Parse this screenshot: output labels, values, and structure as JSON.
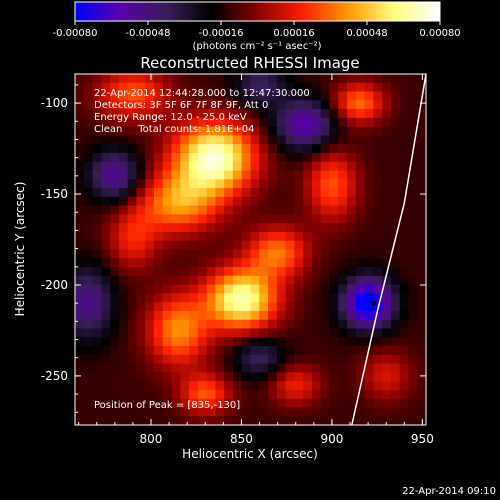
{
  "chart_data": {
    "type": "heatmap",
    "title": "Reconstructed RHESSI Image",
    "xlabel": "Heliocentric X (arcsec)",
    "ylabel": "Heliocentric Y (arcsec)",
    "xlim": [
      758,
      952
    ],
    "ylim": [
      -277,
      -84
    ],
    "x_ticks": [
      800,
      850,
      900,
      950
    ],
    "y_ticks": [
      -100,
      -150,
      -200,
      -250
    ],
    "colorbar": {
      "range": [
        -0.0008,
        0.0008
      ],
      "ticks": [
        "-0.00080",
        "-0.00048",
        "-0.00016",
        "0.00016",
        "0.00048",
        "0.00080"
      ],
      "units_label": "(photons cm⁻² s⁻¹ asec⁻²)",
      "colormap": [
        "#0000ff",
        "#5a00aa",
        "#3a1e5a",
        "#000000",
        "#8a0000",
        "#ff2000",
        "#ff9a00",
        "#ffff80",
        "#ffffff"
      ]
    },
    "info_lines": [
      "22-Apr-2014 12:44:28.000 to 12:47:30.000",
      "Detectors: 3F 5F 6F 7F 8F 9F, Att 0",
      "Energy Range: 12.0 - 25.0 keV",
      "Clean     Total counts: 1.81E+04"
    ],
    "peak_label": "Position of Peak = [835,-130]",
    "timestamp": "22-Apr-2014 09:10",
    "limb": [
      [
        952,
        -84
      ],
      [
        940,
        -155
      ],
      [
        925,
        -215
      ],
      [
        911,
        -277
      ]
    ],
    "peak_marker": [
      923,
      -210
    ],
    "sources": [
      {
        "x": 835,
        "y": -130,
        "amp": 0.00085,
        "sx": 16,
        "sy": 14
      },
      {
        "x": 815,
        "y": -155,
        "amp": 0.0005,
        "sx": 16,
        "sy": 12
      },
      {
        "x": 790,
        "y": -95,
        "amp": 0.0004,
        "sx": 14,
        "sy": 10
      },
      {
        "x": 850,
        "y": -208,
        "amp": 0.0008,
        "sx": 14,
        "sy": 12
      },
      {
        "x": 815,
        "y": -225,
        "amp": 0.0005,
        "sx": 12,
        "sy": 14
      },
      {
        "x": 870,
        "y": -182,
        "amp": 0.00045,
        "sx": 12,
        "sy": 10
      },
      {
        "x": 900,
        "y": -145,
        "amp": 0.0004,
        "sx": 10,
        "sy": 14
      },
      {
        "x": 915,
        "y": -100,
        "amp": 0.00045,
        "sx": 10,
        "sy": 8
      },
      {
        "x": 790,
        "y": -175,
        "amp": 0.0003,
        "sx": 10,
        "sy": 12
      },
      {
        "x": 830,
        "y": -260,
        "amp": 0.0004,
        "sx": 10,
        "sy": 8
      },
      {
        "x": 880,
        "y": -255,
        "amp": 0.0003,
        "sx": 10,
        "sy": 8
      },
      {
        "x": 930,
        "y": -250,
        "amp": 0.00025,
        "sx": 10,
        "sy": 10
      },
      {
        "x": 885,
        "y": -112,
        "amp": -0.0005,
        "sx": 12,
        "sy": 10
      },
      {
        "x": 765,
        "y": -210,
        "amp": -0.0004,
        "sx": 10,
        "sy": 14
      },
      {
        "x": 920,
        "y": -210,
        "amp": -0.00075,
        "sx": 10,
        "sy": 10
      },
      {
        "x": 780,
        "y": -140,
        "amp": -0.00045,
        "sx": 10,
        "sy": 10
      },
      {
        "x": 860,
        "y": -90,
        "amp": -0.0003,
        "sx": 10,
        "sy": 8
      },
      {
        "x": 860,
        "y": -240,
        "amp": -0.0003,
        "sx": 10,
        "sy": 8
      }
    ]
  }
}
